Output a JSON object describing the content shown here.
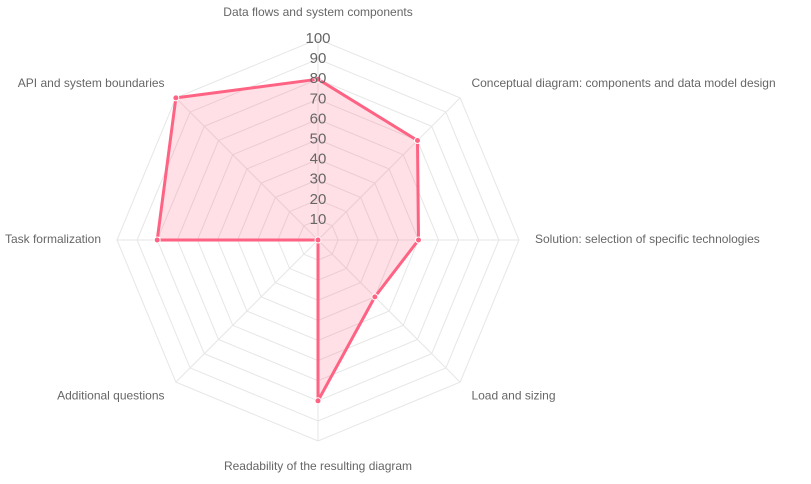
{
  "chart_data": {
    "type": "radar",
    "categories": [
      "Data flows and system components",
      "Conceptual diagram: components and data model design",
      "Solution: selection of specific technologies",
      "Load and sizing",
      "Readability of the resulting diagram",
      "Additional questions",
      "Task formalization",
      "API and system boundaries"
    ],
    "values": [
      80,
      70,
      50,
      40,
      80,
      0,
      80,
      100
    ],
    "color": "#ff6384",
    "ylim": [
      0,
      100
    ],
    "yticks": [
      10,
      20,
      30,
      40,
      50,
      60,
      70,
      80,
      90,
      100
    ],
    "grid": true
  }
}
